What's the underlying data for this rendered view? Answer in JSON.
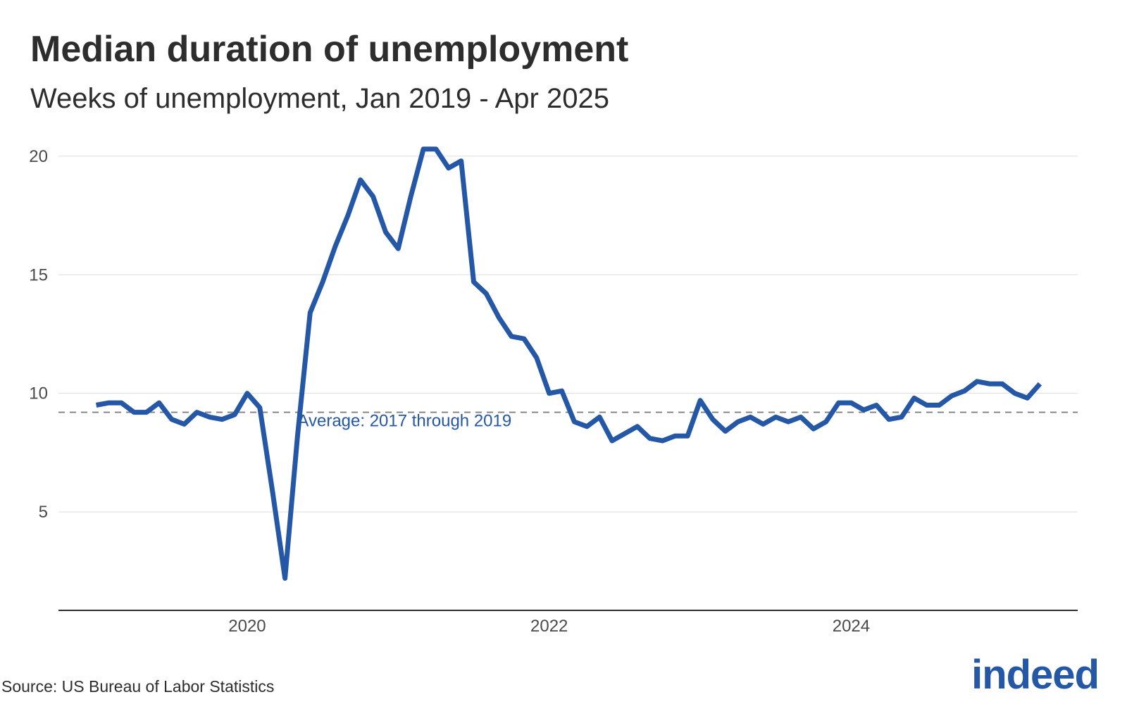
{
  "title": "Median duration of unemployment",
  "subtitle": "Weeks of unemployment, Jan 2019 - Apr 2025",
  "source": "Source: US Bureau of Labor Statistics",
  "logo": "indeed",
  "colors": {
    "line": "#2557a7",
    "reference": "#888888",
    "grid": "#dddddd",
    "axis": "#2d2d2d"
  },
  "chart_data": {
    "type": "line",
    "title": "Median duration of unemployment",
    "subtitle": "Weeks of unemployment, Jan 2019 - Apr 2025",
    "xlabel": "",
    "ylabel": "",
    "ylim": [
      1.5,
      20.5
    ],
    "xlim": [
      "2018-10",
      "2025-07"
    ],
    "grid": true,
    "y_ticks": [
      5,
      10,
      15,
      20
    ],
    "x_ticks": [
      "2020",
      "2022",
      "2024"
    ],
    "reference_line": {
      "value": 9.2,
      "label": "Average: 2017 through 2019"
    },
    "x": [
      "2019-01",
      "2019-02",
      "2019-03",
      "2019-04",
      "2019-05",
      "2019-06",
      "2019-07",
      "2019-08",
      "2019-09",
      "2019-10",
      "2019-11",
      "2019-12",
      "2020-01",
      "2020-02",
      "2020-03",
      "2020-04",
      "2020-05",
      "2020-06",
      "2020-07",
      "2020-08",
      "2020-09",
      "2020-10",
      "2020-11",
      "2020-12",
      "2021-01",
      "2021-02",
      "2021-03",
      "2021-04",
      "2021-05",
      "2021-06",
      "2021-07",
      "2021-08",
      "2021-09",
      "2021-10",
      "2021-11",
      "2021-12",
      "2022-01",
      "2022-02",
      "2022-03",
      "2022-04",
      "2022-05",
      "2022-06",
      "2022-07",
      "2022-08",
      "2022-09",
      "2022-10",
      "2022-11",
      "2022-12",
      "2023-01",
      "2023-02",
      "2023-03",
      "2023-04",
      "2023-05",
      "2023-06",
      "2023-07",
      "2023-08",
      "2023-09",
      "2023-10",
      "2023-11",
      "2023-12",
      "2024-01",
      "2024-02",
      "2024-03",
      "2024-04",
      "2024-05",
      "2024-06",
      "2024-07",
      "2024-08",
      "2024-09",
      "2024-10",
      "2024-11",
      "2024-12",
      "2025-01",
      "2025-02",
      "2025-03",
      "2025-04"
    ],
    "series": [
      {
        "values": [
          9.5,
          9.6,
          9.6,
          9.2,
          9.2,
          9.6,
          8.9,
          8.7,
          9.2,
          9.0,
          8.9,
          9.1,
          10.0,
          9.4,
          5.9,
          2.2,
          8.2,
          13.4,
          14.7,
          16.2,
          17.5,
          19.0,
          18.3,
          16.8,
          16.1,
          18.3,
          20.3,
          20.3,
          19.5,
          19.8,
          14.7,
          14.2,
          13.2,
          12.4,
          12.3,
          11.5,
          10.0,
          10.1,
          8.8,
          8.6,
          9.0,
          8.0,
          8.3,
          8.6,
          8.1,
          8.0,
          8.2,
          8.2,
          9.7,
          8.9,
          8.4,
          8.8,
          9.0,
          8.7,
          9.0,
          8.8,
          9.0,
          8.5,
          8.8,
          9.6,
          9.6,
          9.3,
          9.5,
          8.9,
          9.0,
          9.8,
          9.5,
          9.5,
          9.9,
          10.1,
          10.5,
          10.4,
          10.4,
          10.0,
          9.8,
          10.4
        ]
      }
    ]
  }
}
